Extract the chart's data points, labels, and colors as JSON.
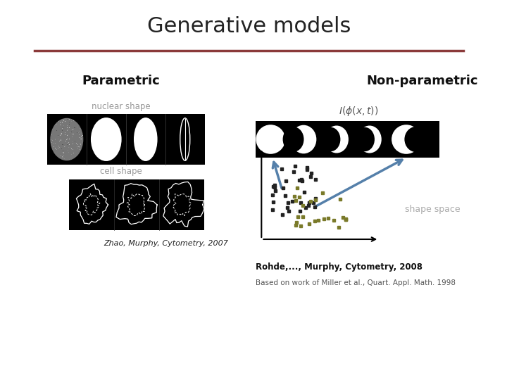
{
  "title": "Generative models",
  "title_fontsize": 22,
  "title_color": "#222222",
  "separator_color": "#8B3A3A",
  "bg_color": "#ffffff",
  "parametric_label": "Parametric",
  "nonparametric_label": "Non-parametric",
  "nuclear_shape_label": "nuclear shape",
  "cell_shape_label": "cell shape",
  "zhao_label": "Zhao, Murphy, Cytometry, 2007",
  "rohde_label": "Rohde,..., Murphy, Cytometry, 2008",
  "miller_label": "Based on work of Miller et al., Quart. Appl. Math. 1998",
  "shape_space_label": "shape space",
  "math_formula": "$I(\\phi(x,t))$",
  "arrow_color": "#5580AA",
  "scatter_dark": "#222222",
  "scatter_olive": "#7a7a2a"
}
